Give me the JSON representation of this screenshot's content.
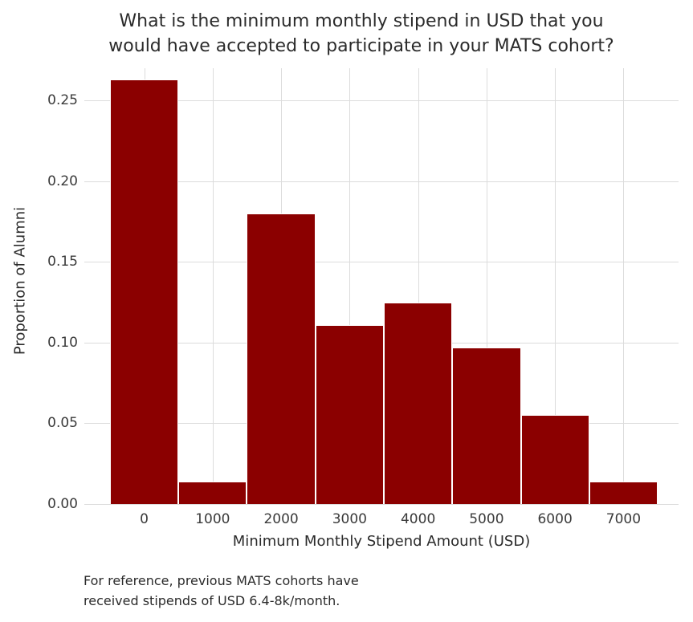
{
  "chart_data": {
    "type": "bar",
    "title": "What is the minimum monthly stipend in USD that you\nwould have accepted to participate in your MATS cohort?",
    "xlabel": "Minimum Monthly Stipend Amount (USD)",
    "ylabel": "Proportion of Alumni",
    "categories": [
      "0",
      "1000",
      "2000",
      "3000",
      "4000",
      "5000",
      "6000",
      "7000"
    ],
    "values": [
      0.263,
      0.014,
      0.18,
      0.111,
      0.125,
      0.097,
      0.055,
      0.014
    ],
    "yticks": [
      0.0,
      0.05,
      0.1,
      0.15,
      0.2,
      0.25
    ],
    "ylim": [
      0,
      0.27
    ],
    "grid": true,
    "legend": "none",
    "bar_color": "#8b0000",
    "grid_color": "#dcdcdc",
    "footnote": "For reference, previous MATS cohorts have\nreceived stipends of USD 6.4-8k/month."
  }
}
